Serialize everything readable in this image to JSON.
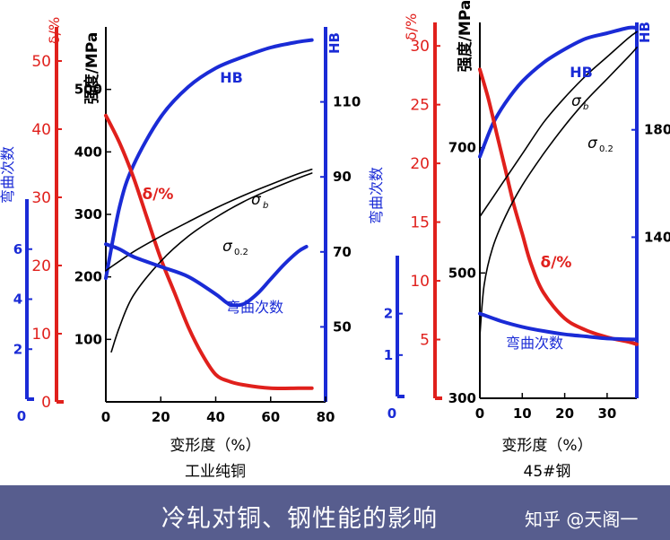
{
  "colors": {
    "red": "#e0201c",
    "blue": "#1a2bd6",
    "black": "#000000",
    "banner": "#575d8e"
  },
  "caption": {
    "title": "冷轧对铜、钢性能的影响",
    "watermark": "知乎 @天阁一"
  },
  "chart_data": [
    {
      "type": "line",
      "subtitle": "工业纯铜",
      "xlabel": "变形度（%）",
      "xlim": [
        0,
        80
      ],
      "x_ticks": [
        "0",
        "20",
        "40",
        "60",
        "80"
      ],
      "axes": {
        "delta": {
          "label": "δ/%",
          "range": [
            0,
            55
          ],
          "ticks": [
            "0",
            "10",
            "20",
            "30",
            "40",
            "50"
          ]
        },
        "bends": {
          "label": "弯曲次数",
          "range": [
            0,
            8
          ],
          "ticks": [
            "0",
            "2",
            "4",
            "6"
          ]
        },
        "strength": {
          "label": "强度/MPa",
          "range": [
            0,
            600
          ],
          "ticks": [
            "100",
            "200",
            "300",
            "400",
            "500"
          ]
        },
        "hb": {
          "label": "HB",
          "range": [
            30,
            130
          ],
          "ticks": [
            "50",
            "70",
            "90",
            "110"
          ]
        }
      },
      "series": [
        {
          "name": "HB",
          "axis": "hb",
          "color": "blue",
          "x": [
            0,
            5,
            10,
            20,
            30,
            40,
            50,
            60,
            70,
            75
          ],
          "y": [
            63,
            82,
            93,
            106,
            114,
            119,
            122,
            124.5,
            126,
            126.5
          ]
        },
        {
          "name": "δ/%",
          "axis": "delta",
          "color": "red",
          "x": [
            0,
            5,
            10,
            15,
            20,
            25,
            30,
            35,
            40,
            45,
            50,
            60,
            70,
            75
          ],
          "y": [
            42,
            38,
            33,
            27,
            21,
            16,
            11,
            7,
            4,
            3,
            2.5,
            2,
            2,
            2
          ]
        },
        {
          "name": "σb",
          "axis": "strength",
          "color": "black",
          "x": [
            0,
            10,
            20,
            30,
            40,
            50,
            60,
            70,
            75
          ],
          "y": [
            210,
            240,
            265,
            288,
            310,
            330,
            348,
            365,
            372
          ]
        },
        {
          "name": "σ0.2",
          "axis": "strength",
          "color": "black",
          "x": [
            2,
            5,
            10,
            20,
            30,
            40,
            50,
            60,
            70,
            75
          ],
          "y": [
            80,
            120,
            170,
            225,
            265,
            295,
            320,
            340,
            358,
            366
          ]
        },
        {
          "name": "弯曲次数",
          "axis": "bends",
          "color": "blue",
          "x": [
            0,
            5,
            10,
            20,
            30,
            40,
            45,
            50,
            55,
            60,
            65,
            70,
            73
          ],
          "y": [
            6.2,
            6.0,
            5.7,
            5.3,
            4.9,
            4.2,
            3.8,
            3.8,
            4.2,
            4.8,
            5.4,
            5.9,
            6.1
          ]
        }
      ],
      "labels": {
        "hb": "HB",
        "delta": "δ/%",
        "sigma_b": "σ",
        "sigma_b_sub": "b",
        "sigma_02": "σ",
        "sigma_02_sub": "0.2",
        "bends": "弯曲次数"
      }
    },
    {
      "type": "line",
      "subtitle": "45#钢",
      "xlabel": "变形度（%）",
      "xlim": [
        0,
        37
      ],
      "x_ticks": [
        "0",
        "10",
        "20",
        "30"
      ],
      "axes": {
        "delta": {
          "label": "δ/%",
          "range": [
            0,
            32
          ],
          "ticks": [
            "5",
            "10",
            "15",
            "20",
            "25",
            "30"
          ]
        },
        "bends": {
          "label": "弯曲次数",
          "range": [
            0,
            3.4
          ],
          "ticks": [
            "0",
            "1",
            "2"
          ]
        },
        "strength": {
          "label": "强度/MPa",
          "range": [
            300,
            900
          ],
          "ticks": [
            "300",
            "500",
            "700"
          ]
        },
        "hb": {
          "label": "HB",
          "range": [
            80,
            220
          ],
          "ticks": [
            "140",
            "180"
          ]
        }
      },
      "series": [
        {
          "name": "HB",
          "axis": "hb",
          "color": "blue",
          "x": [
            0,
            3,
            6,
            10,
            15,
            20,
            25,
            30,
            35,
            37
          ],
          "y": [
            170,
            182,
            190,
            198,
            205,
            210,
            214,
            216,
            218,
            218
          ]
        },
        {
          "name": "δ/%",
          "axis": "delta",
          "color": "red",
          "x": [
            0,
            2,
            4,
            6,
            8,
            10,
            12,
            15,
            20,
            25,
            30,
            35,
            37
          ],
          "y": [
            28,
            25.5,
            22.5,
            19.5,
            16.5,
            14,
            11.5,
            9,
            6.8,
            5.8,
            5.2,
            4.8,
            4.6
          ]
        },
        {
          "name": "σb",
          "axis": "strength",
          "color": "black",
          "x": [
            0,
            5,
            10,
            15,
            20,
            25,
            30,
            35,
            37
          ],
          "y": [
            590,
            640,
            690,
            740,
            780,
            815,
            845,
            875,
            885
          ]
        },
        {
          "name": "σ0.2",
          "axis": "strength",
          "color": "black",
          "x": [
            0,
            1,
            3,
            6,
            10,
            15,
            20,
            25,
            30,
            35,
            37
          ],
          "y": [
            400,
            480,
            540,
            590,
            640,
            690,
            735,
            775,
            810,
            845,
            860
          ]
        },
        {
          "name": "弯曲次数",
          "axis": "bends",
          "color": "blue",
          "x": [
            0,
            5,
            10,
            15,
            20,
            25,
            30,
            35,
            37
          ],
          "y": [
            2.0,
            1.82,
            1.68,
            1.58,
            1.5,
            1.45,
            1.4,
            1.38,
            1.38
          ]
        }
      ],
      "labels": {
        "hb": "HB",
        "delta": "δ/%",
        "sigma_b": "σ",
        "sigma_b_sub": "b",
        "sigma_02": "σ",
        "sigma_02_sub": "0.2",
        "bends": "弯曲次数"
      }
    }
  ]
}
